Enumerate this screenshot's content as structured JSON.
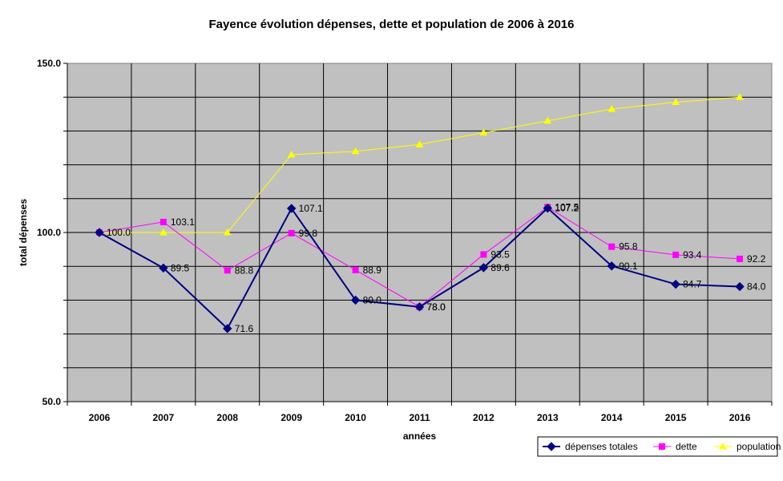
{
  "chart_data": {
    "type": "line",
    "title": "Fayence évolution dépenses, dette et population de 2006 à 2016",
    "xlabel": "années",
    "ylabel": "total dépenses",
    "categories": [
      "2006",
      "2007",
      "2008",
      "2009",
      "2010",
      "2011",
      "2012",
      "2013",
      "2014",
      "2015",
      "2016"
    ],
    "ylim": [
      50,
      150
    ],
    "yticks": [
      "50.0",
      "100.0",
      "150.0"
    ],
    "grid": true,
    "legend_position": "bottom-right",
    "series": [
      {
        "name": "dépenses totales",
        "color": "#000080",
        "marker": "diamond",
        "values": [
          100.0,
          89.5,
          71.6,
          107.1,
          80.0,
          78.0,
          89.6,
          107.2,
          90.1,
          84.7,
          84.0
        ],
        "labels": [
          "",
          "89.5",
          "71.6",
          "107.1",
          "80.0",
          "78.0",
          "89.6",
          "107.2",
          "90.1",
          "84.7",
          "84.0"
        ]
      },
      {
        "name": "dette",
        "color": "#FF00FF",
        "marker": "square",
        "values": [
          100.0,
          103.1,
          88.8,
          99.8,
          88.9,
          78.0,
          93.5,
          107.5,
          95.8,
          93.4,
          92.2
        ],
        "labels": [
          "100.0",
          "103.1",
          "88.8",
          "99.8",
          "88.9",
          "78.0",
          "93.5",
          "107.5",
          "95.8",
          "93.4",
          "92.2"
        ]
      },
      {
        "name": "population",
        "color": "#FFFF00",
        "marker": "triangle",
        "values": [
          100.0,
          100.0,
          100.0,
          123.0,
          124.0,
          126.0,
          129.5,
          133.0,
          136.5,
          138.5,
          140.0
        ],
        "labels": []
      }
    ]
  }
}
